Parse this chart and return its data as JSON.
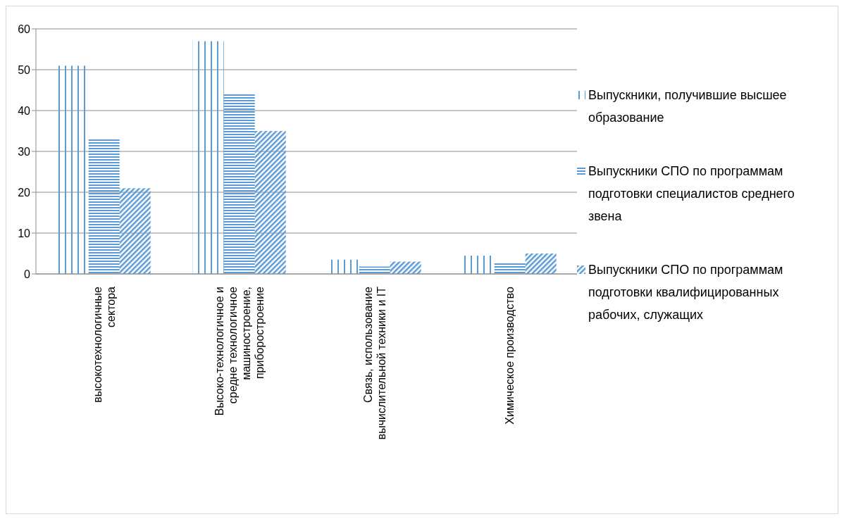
{
  "chart_data": {
    "type": "bar",
    "categories": [
      "высокотехнологичные сектора",
      "Высоко-технологичное и средне технологичное машиностроение, приборостроение",
      "Связь, использование вычислительной техники и IT",
      "Химическое производство"
    ],
    "series": [
      {
        "name": "Выпускники, получившие высшее образование",
        "color": "#5b9bd5",
        "values": [
          51,
          57,
          3.5,
          4.5
        ]
      },
      {
        "name": "Выпускники СПО по программам подготовки специалистов среднего звена",
        "color": "#5b9bd5",
        "values": [
          33,
          44,
          1.8,
          2.7
        ]
      },
      {
        "name": "Выпускники СПО по программам подготовки квалифицированных рабочих, служащих",
        "color": "#5b9bd5",
        "values": [
          21,
          35,
          3,
          5
        ]
      }
    ],
    "ylim": [
      0,
      60
    ],
    "yticks": [
      0,
      10,
      20,
      30,
      40,
      50,
      60
    ],
    "grid": "y",
    "legend": "right"
  }
}
